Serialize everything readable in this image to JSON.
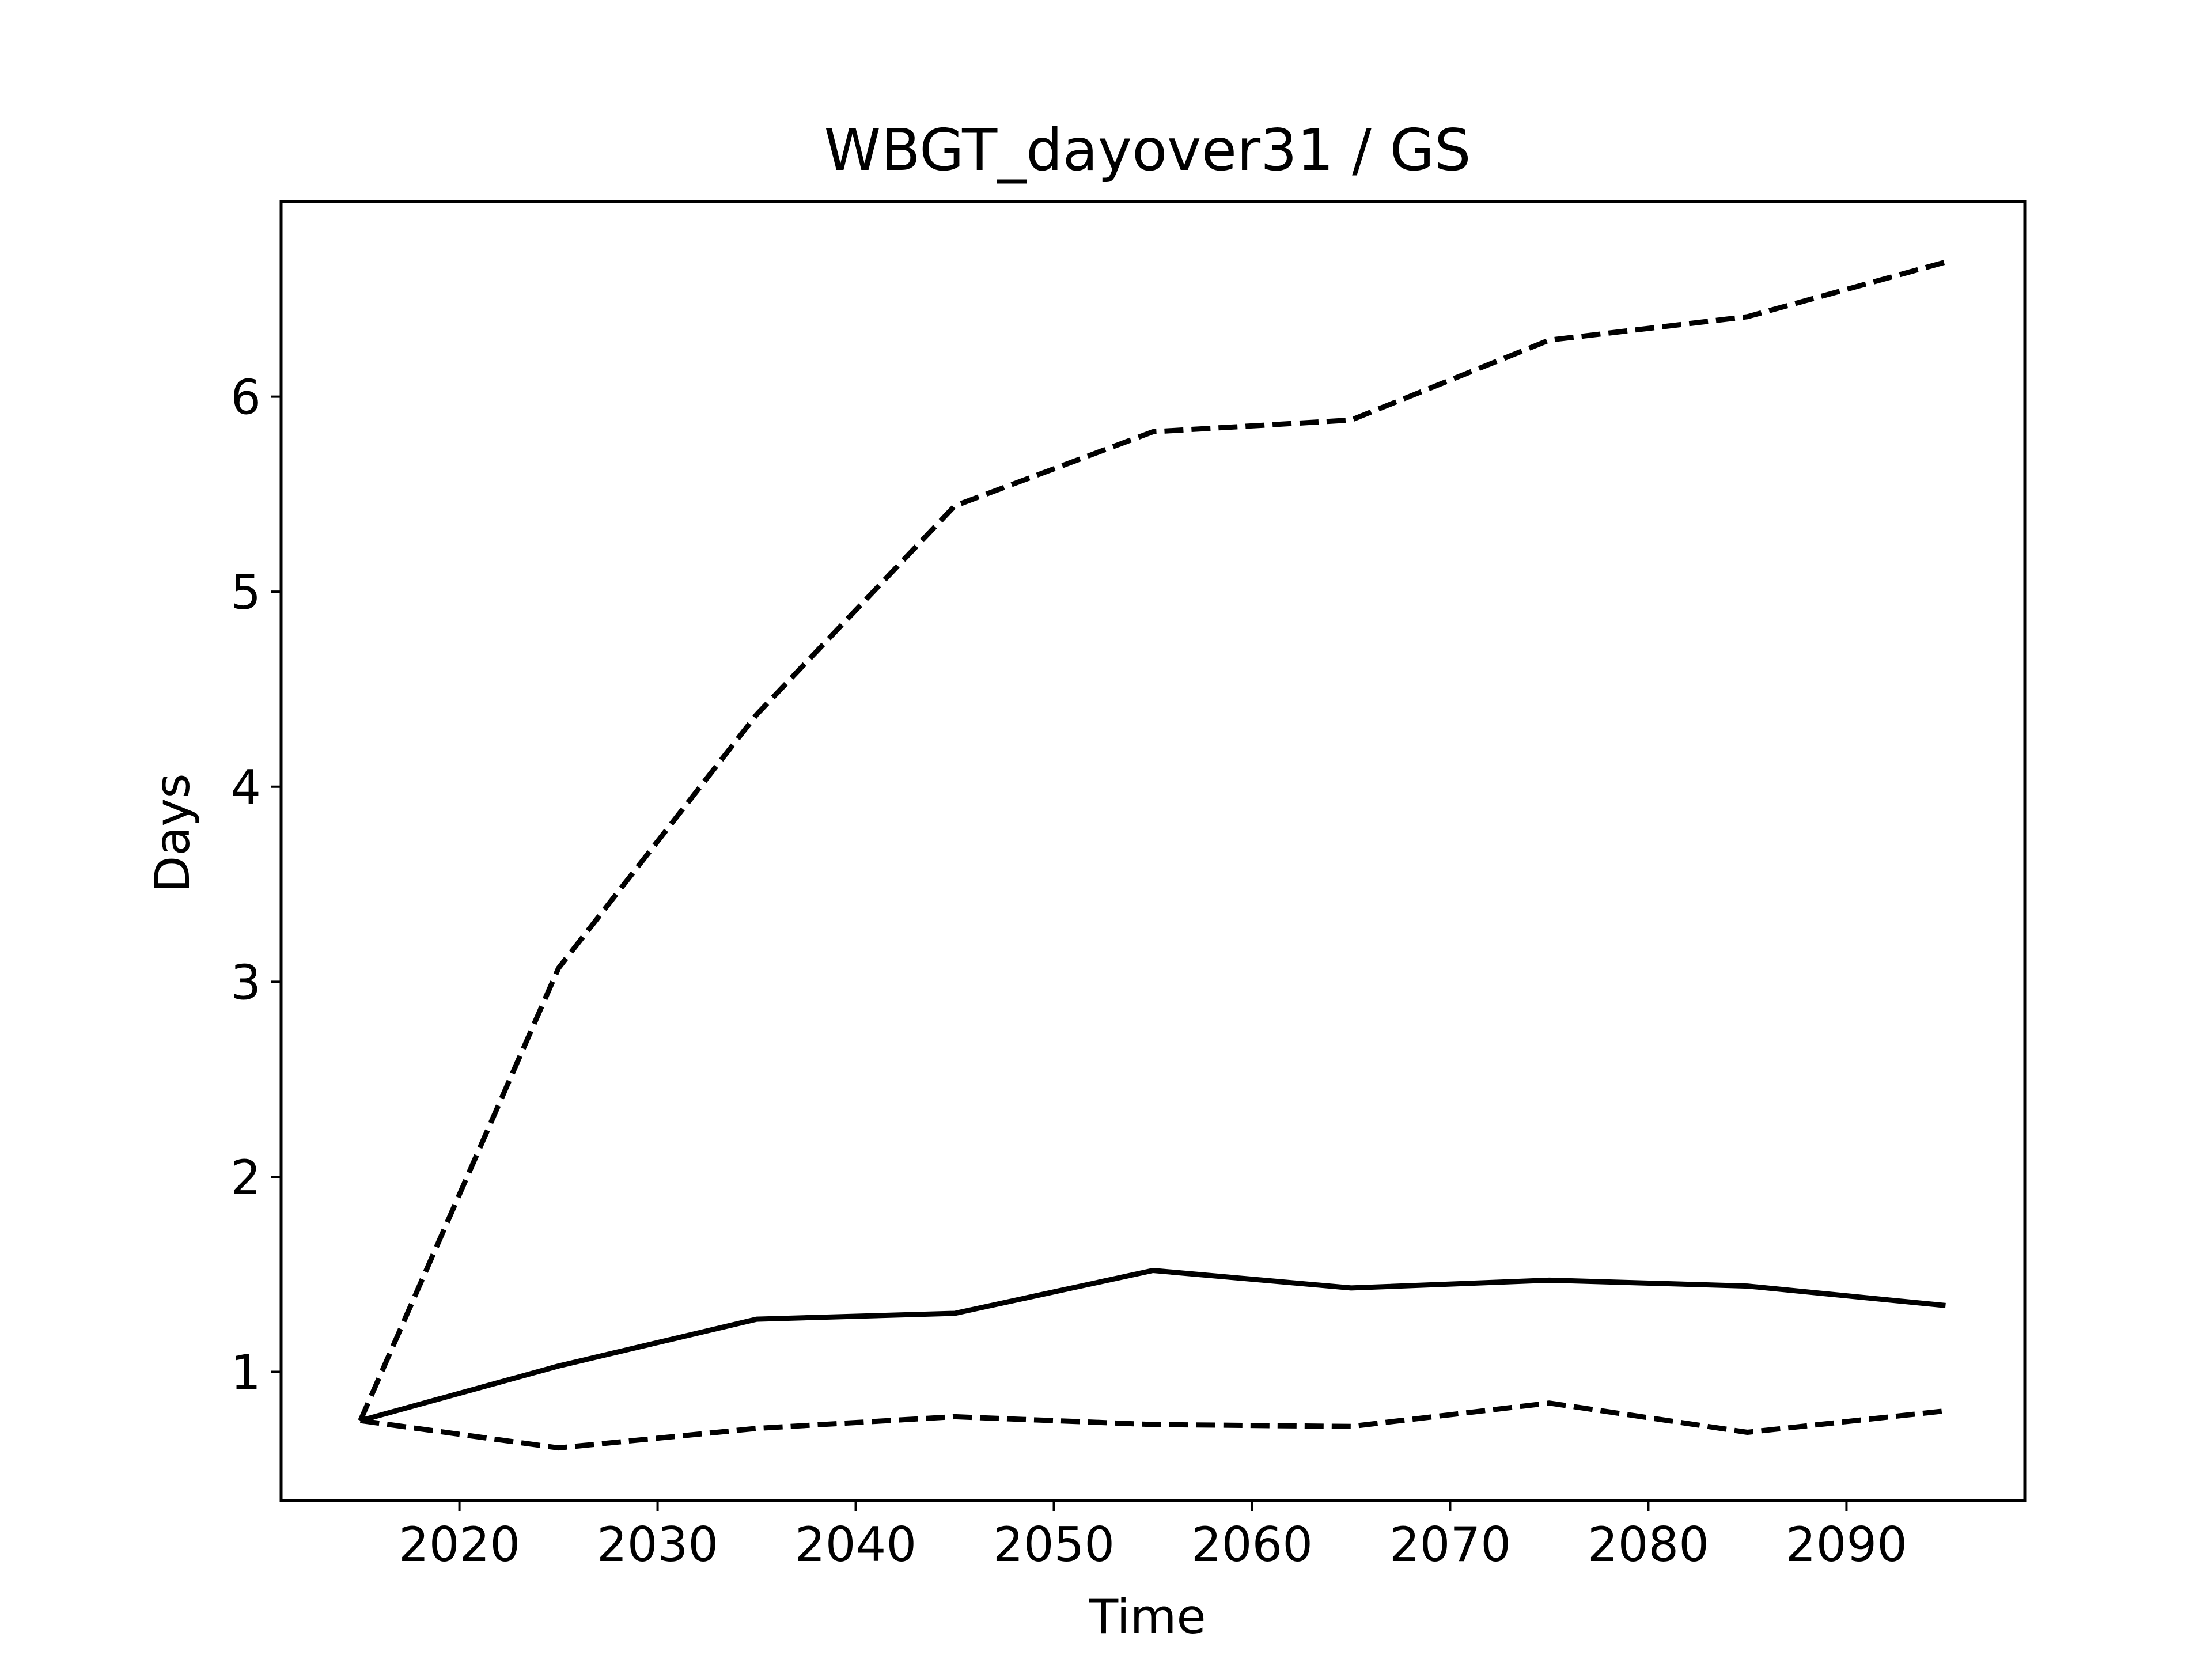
{
  "chart_data": {
    "type": "line",
    "title": "WBGT_dayover31 / GS",
    "xlabel": "Time",
    "ylabel": "Days",
    "x": [
      2015,
      2025,
      2035,
      2045,
      2055,
      2065,
      2075,
      2085,
      2095
    ],
    "xlim": [
      2011,
      2099
    ],
    "ylim": [
      0.34,
      7.0
    ],
    "xticks": [
      2020,
      2030,
      2040,
      2050,
      2060,
      2070,
      2080,
      2090
    ],
    "xtick_labels": [
      "2020",
      "2030",
      "2040",
      "2050",
      "2060",
      "2070",
      "2080",
      "2090"
    ],
    "yticks": [
      1,
      2,
      3,
      4,
      5,
      6
    ],
    "ytick_labels": [
      "1",
      "2",
      "3",
      "4",
      "5",
      "6"
    ],
    "grid": false,
    "legend": false,
    "series": [
      {
        "style": "dashed",
        "color": "#000000",
        "values": [
          0.75,
          3.07,
          4.37,
          5.44,
          5.82,
          5.88,
          6.29,
          6.41,
          6.69
        ]
      },
      {
        "style": "solid",
        "color": "#000000",
        "values": [
          0.75,
          1.03,
          1.27,
          1.3,
          1.52,
          1.43,
          1.47,
          1.44,
          1.34
        ]
      },
      {
        "style": "dashed",
        "color": "#000000",
        "values": [
          0.75,
          0.61,
          0.71,
          0.77,
          0.73,
          0.72,
          0.84,
          0.69,
          0.8
        ]
      }
    ]
  }
}
